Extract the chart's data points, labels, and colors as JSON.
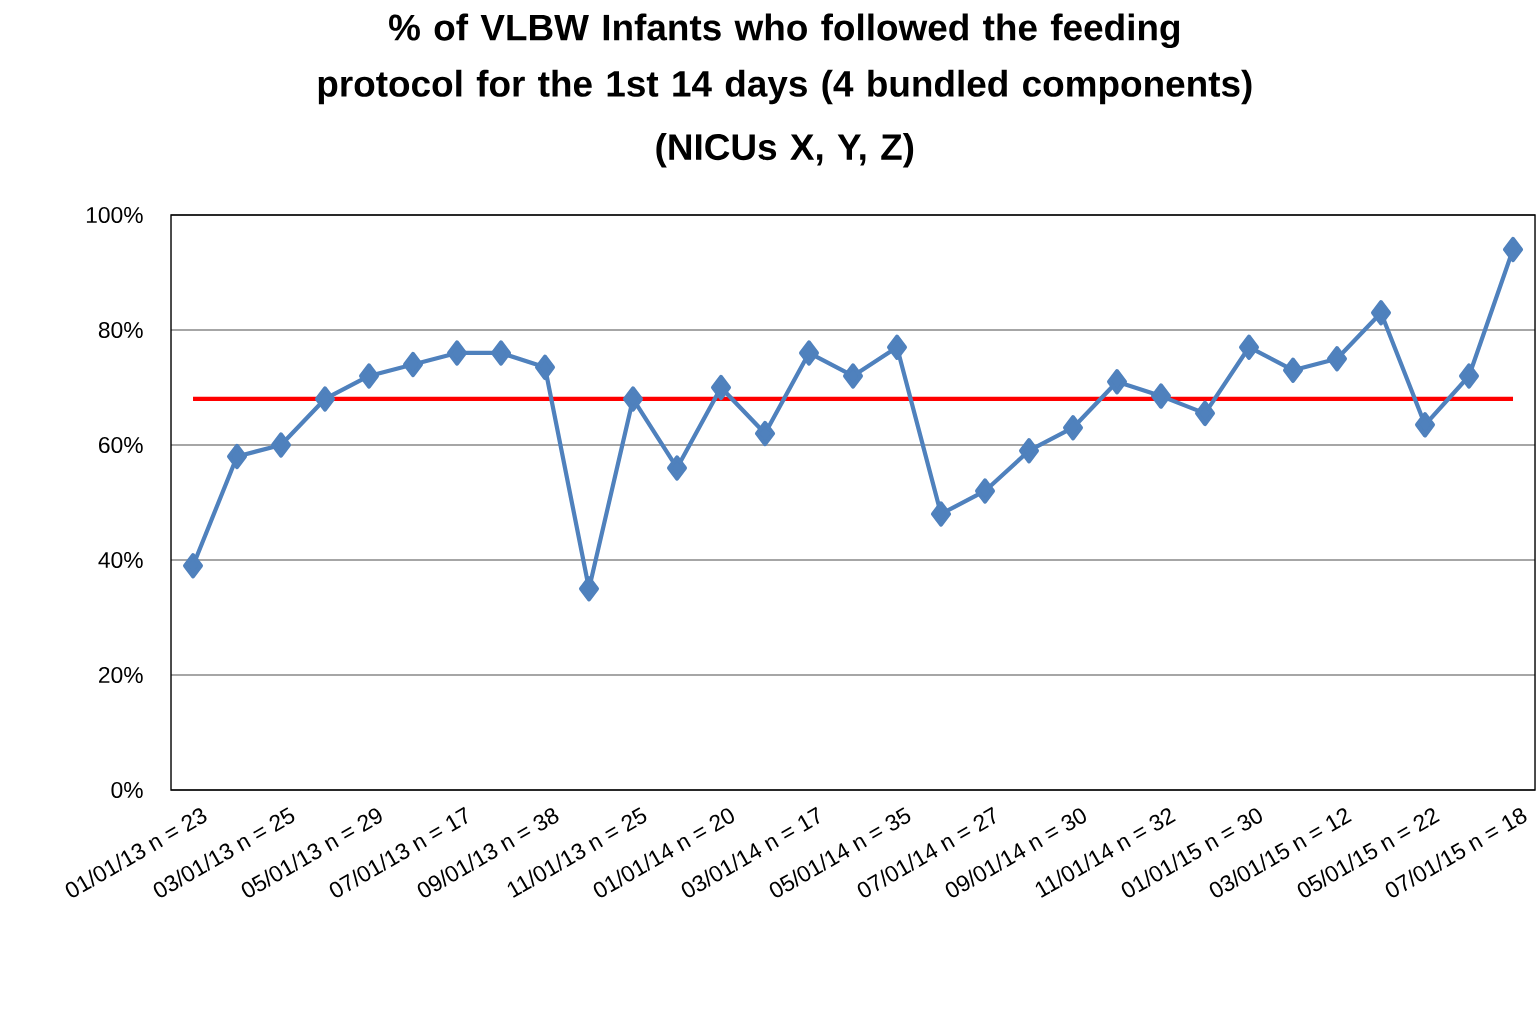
{
  "chart_data": {
    "type": "line",
    "title": "% of VLBW Infants who followed the feeding protocol for the 1st 14 days (4 bundled components)",
    "subtitle": "(NICUs X, Y, Z)",
    "categories": [
      "01/01/13 n = 23",
      null,
      "03/01/13 n = 25",
      null,
      "05/01/13 n = 29",
      null,
      "07/01/13 n = 17",
      null,
      "09/01/13 n = 38",
      null,
      "11/01/13 n = 25",
      null,
      "01/01/14 n = 20",
      null,
      "03/01/14 n = 17",
      null,
      "05/01/14 n = 35",
      null,
      "07/01/14 n = 27",
      null,
      "09/01/14 n = 30",
      null,
      "11/01/14 n = 32",
      null,
      "01/01/15 n = 30",
      null,
      "03/01/15 n = 12",
      null,
      "05/01/15 n = 22",
      null,
      "07/01/15 n = 18"
    ],
    "series": [
      {
        "color": "#4f81bd",
        "values": [
          39,
          58,
          60,
          68,
          72,
          74,
          76,
          76,
          73.5,
          35,
          68,
          56,
          70,
          62,
          76,
          72,
          77,
          48,
          52,
          59,
          63,
          71,
          68.5,
          65.5,
          77,
          73,
          75,
          83,
          63.5,
          72,
          94
        ]
      }
    ],
    "ylim": [
      0,
      100
    ],
    "yticks": [
      {
        "value": 0,
        "label": "0%"
      },
      {
        "value": 20,
        "label": "20%"
      },
      {
        "value": 40,
        "label": "40%"
      },
      {
        "value": 60,
        "label": "60%"
      },
      {
        "value": 80,
        "label": "80%"
      },
      {
        "value": 100,
        "label": "100%"
      }
    ],
    "ref_lines": [
      {
        "axis": "y",
        "value": 68,
        "color": "#ff0000"
      }
    ],
    "grid": "y",
    "marker": "diamond",
    "line_style": "solid"
  }
}
